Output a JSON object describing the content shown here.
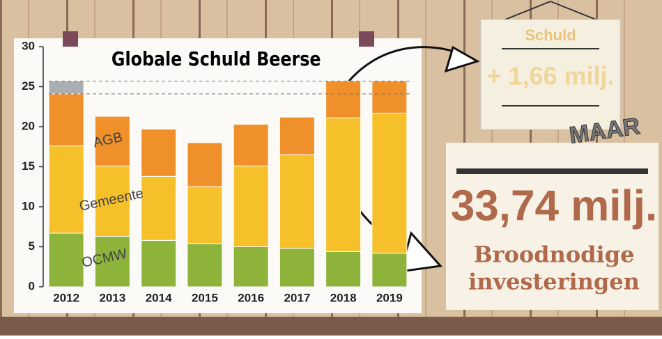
{
  "chart_data": {
    "type": "stacked_bar",
    "title": "Globale Schuld Beerse",
    "categories": [
      "2012",
      "2013",
      "2014",
      "2015",
      "2016",
      "2017",
      "2018",
      "2019"
    ],
    "series": [
      {
        "name": "OCMW",
        "color": "#8db33a",
        "values": [
          6.7,
          6.3,
          5.8,
          5.4,
          5.0,
          4.8,
          4.4,
          4.2
        ]
      },
      {
        "name": "Gemeente",
        "color": "#f5c02a",
        "values": [
          10.9,
          8.8,
          8.0,
          7.1,
          10.1,
          11.7,
          16.7,
          17.5
        ]
      },
      {
        "name": "AGB",
        "color": "#f0902a",
        "values": [
          6.5,
          6.2,
          5.9,
          5.5,
          5.2,
          4.7,
          4.6,
          4.0
        ]
      },
      {
        "color": "#a9aeb0",
        "values": [
          1.6,
          null,
          null,
          null,
          null,
          null,
          null,
          null
        ]
      }
    ],
    "ylim": [
      0,
      30
    ],
    "yticks": [
      0,
      5,
      10,
      15,
      20,
      25,
      30
    ],
    "annotations": {
      "sign_title": "Schuld",
      "sign_value": "+ 1,66 milj.",
      "but": "MAAR",
      "big_value": "33,74 milj.",
      "line1": "Broodnodige",
      "line2": "investeringen"
    }
  }
}
